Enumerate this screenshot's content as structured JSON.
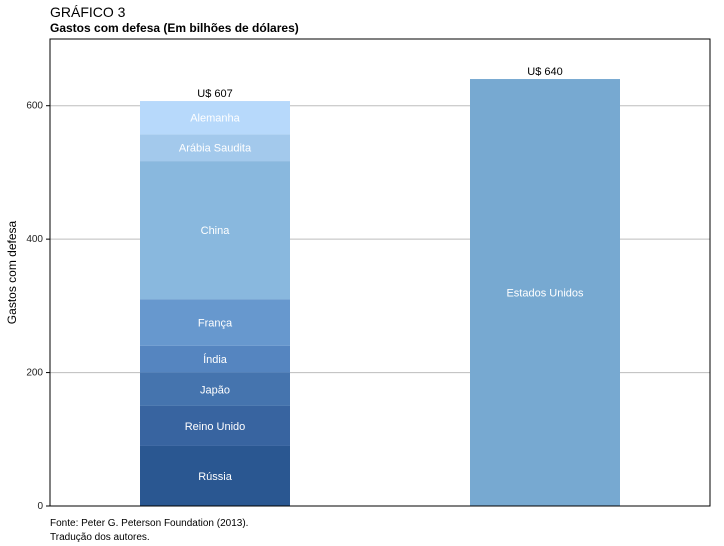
{
  "header": {
    "figure_label": "GRÁFICO 3",
    "title": "Gastos com defesa (Em bilhões de dólares)"
  },
  "footer": {
    "source": "Fonte: Peter G. Peterson Foundation (2013).",
    "note": "Tradução dos autores."
  },
  "chart_data": {
    "type": "bar",
    "stacked": true,
    "ylabel": "Gastos com defesa",
    "ylim": [
      0,
      700
    ],
    "yticks": [
      0,
      200,
      400,
      600
    ],
    "grid": "horizontal",
    "bars": [
      {
        "total_label": "U$ 607",
        "total": 607,
        "segments": [
          {
            "name": "Rússia",
            "value": 90,
            "color": "#2a5791"
          },
          {
            "name": "Reino Unido",
            "value": 60,
            "color": "#3864a0"
          },
          {
            "name": "Japão",
            "value": 50,
            "color": "#4574ae"
          },
          {
            "name": "Índia",
            "value": 40,
            "color": "#5585c0"
          },
          {
            "name": "França",
            "value": 70,
            "color": "#6798ce"
          },
          {
            "name": "China",
            "value": 207,
            "color": "#89b8de"
          },
          {
            "name": "Arábia Saudita",
            "value": 40,
            "color": "#a3c9ec"
          },
          {
            "name": "Alemanha",
            "value": 50,
            "color": "#b7d9fb"
          }
        ]
      },
      {
        "total_label": "U$ 640",
        "total": 640,
        "segments": [
          {
            "name": "Estados Unidos",
            "value": 640,
            "color": "#77a9d1"
          }
        ]
      }
    ]
  }
}
